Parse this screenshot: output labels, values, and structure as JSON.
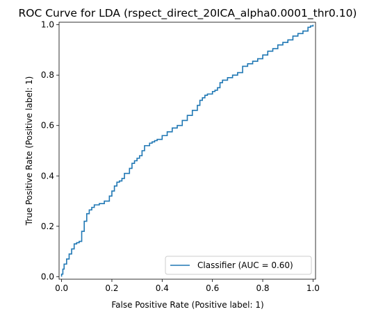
{
  "chart_data": {
    "type": "line",
    "title": "ROC Curve for LDA (rspect_direct_20ICA_alpha0.0001_thr0.10)",
    "xlabel": "False Positive Rate (Positive label: 1)",
    "ylabel": "True Positive Rate (Positive label: 1)",
    "xlim": [
      -0.01,
      1.01
    ],
    "ylim": [
      -0.01,
      1.01
    ],
    "xticks": [
      0.0,
      0.2,
      0.4,
      0.6,
      0.8,
      1.0
    ],
    "yticks": [
      0.0,
      0.2,
      0.4,
      0.6,
      0.8,
      1.0
    ],
    "xtick_labels": [
      "0.0",
      "0.2",
      "0.4",
      "0.6",
      "0.8",
      "1.0"
    ],
    "ytick_labels": [
      "0.0",
      "0.2",
      "0.4",
      "0.6",
      "0.8",
      "1.0"
    ],
    "grid": false,
    "legend_position": "bottom-right",
    "series": [
      {
        "name": "Classifier (AUC = 0.60)",
        "color": "#1f77b4",
        "x": [
          0.0,
          0.0,
          0.005,
          0.01,
          0.02,
          0.03,
          0.04,
          0.05,
          0.06,
          0.07,
          0.08,
          0.09,
          0.1,
          0.11,
          0.12,
          0.13,
          0.15,
          0.17,
          0.19,
          0.2,
          0.21,
          0.22,
          0.23,
          0.24,
          0.25,
          0.27,
          0.28,
          0.29,
          0.3,
          0.31,
          0.32,
          0.33,
          0.35,
          0.36,
          0.37,
          0.38,
          0.4,
          0.42,
          0.44,
          0.46,
          0.48,
          0.5,
          0.52,
          0.54,
          0.55,
          0.56,
          0.57,
          0.58,
          0.6,
          0.61,
          0.62,
          0.63,
          0.64,
          0.66,
          0.68,
          0.7,
          0.72,
          0.74,
          0.76,
          0.78,
          0.8,
          0.82,
          0.84,
          0.86,
          0.88,
          0.9,
          0.92,
          0.94,
          0.96,
          0.98,
          0.99,
          1.0
        ],
        "y": [
          0.0,
          0.01,
          0.03,
          0.05,
          0.07,
          0.09,
          0.11,
          0.13,
          0.135,
          0.14,
          0.18,
          0.22,
          0.25,
          0.265,
          0.275,
          0.285,
          0.29,
          0.3,
          0.32,
          0.34,
          0.36,
          0.375,
          0.38,
          0.39,
          0.41,
          0.43,
          0.45,
          0.46,
          0.47,
          0.48,
          0.5,
          0.52,
          0.53,
          0.535,
          0.54,
          0.545,
          0.56,
          0.575,
          0.59,
          0.6,
          0.62,
          0.64,
          0.66,
          0.68,
          0.7,
          0.71,
          0.72,
          0.725,
          0.735,
          0.74,
          0.75,
          0.77,
          0.78,
          0.79,
          0.8,
          0.81,
          0.835,
          0.845,
          0.855,
          0.865,
          0.88,
          0.895,
          0.905,
          0.92,
          0.93,
          0.94,
          0.955,
          0.965,
          0.975,
          0.99,
          0.995,
          1.0
        ]
      }
    ]
  }
}
